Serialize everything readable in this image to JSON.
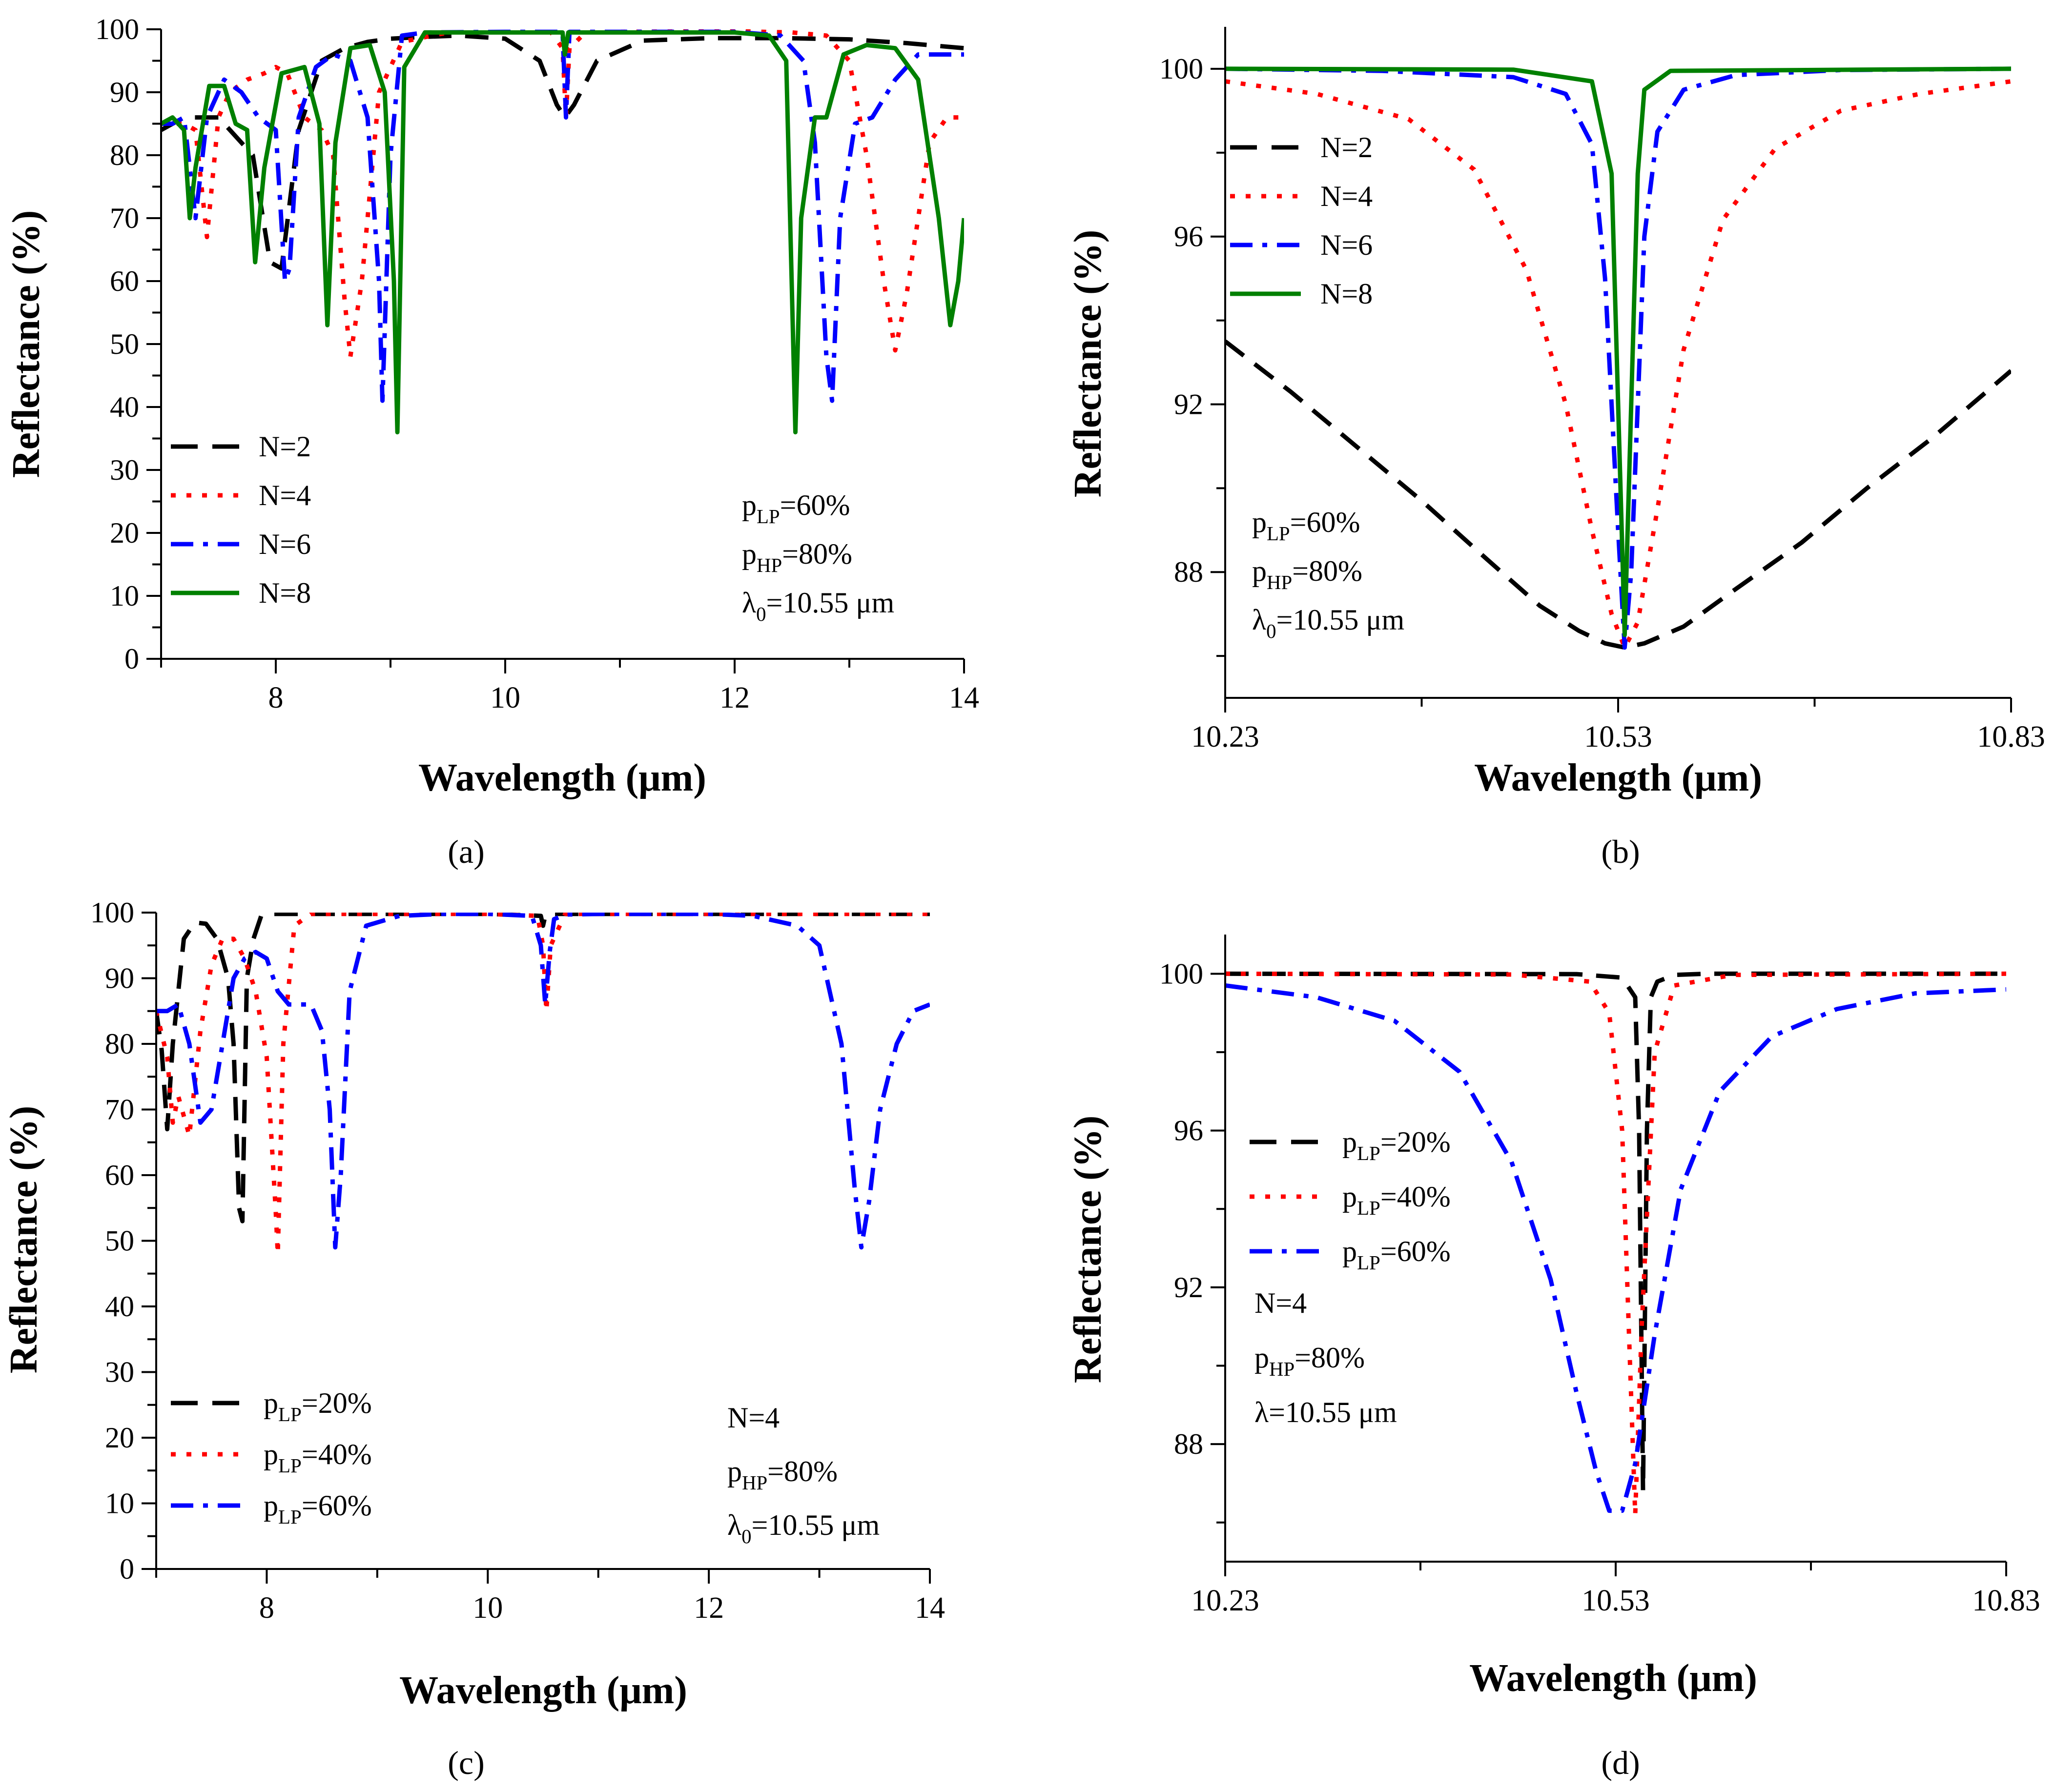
{
  "chart_data": [
    {
      "id": "a",
      "type": "line",
      "caption": "(a)",
      "xlabel": "Wavelength (μm)",
      "ylabel": "Reflectance (%)",
      "xlim": [
        7,
        14
      ],
      "ylim": [
        0,
        100
      ],
      "xticks": [
        8,
        10,
        12,
        14
      ],
      "yticks": [
        0,
        10,
        20,
        30,
        40,
        50,
        60,
        70,
        80,
        90,
        100
      ],
      "legend": "bottom-left",
      "annotations": [
        {
          "base": "p",
          "sub": "LP",
          "rest": "=60%"
        },
        {
          "base": "p",
          "sub": "HP",
          "rest": "=80%"
        },
        {
          "base": "λ",
          "sub": "0",
          "rest": "=10.55 μm"
        }
      ],
      "series": [
        {
          "name": "N=2",
          "label_prefix": "",
          "label_sub": "",
          "label_rest": "N=2",
          "color": "#000000",
          "dash": "dash",
          "x": [
            7.0,
            7.2,
            7.5,
            7.8,
            7.95,
            8.05,
            8.2,
            8.4,
            8.6,
            8.8,
            9.0,
            9.3,
            9.6,
            10.0,
            10.3,
            10.45,
            10.52,
            10.6,
            10.8,
            11.2,
            11.8,
            12.4,
            13.0,
            13.5,
            14.0
          ],
          "y": [
            84,
            86,
            86,
            80,
            63,
            62,
            84,
            95,
            97,
            98,
            98.5,
            98.8,
            99,
            98.5,
            95,
            88,
            86,
            88,
            95,
            98.2,
            98.6,
            98.6,
            98.4,
            97.8,
            97
          ]
        },
        {
          "name": "N=4",
          "label_prefix": "",
          "label_sub": "",
          "label_rest": "N=4",
          "color": "#ff0000",
          "dash": "dot",
          "x": [
            7.0,
            7.2,
            7.3,
            7.4,
            7.5,
            7.6,
            7.75,
            7.9,
            8.0,
            8.1,
            8.25,
            8.4,
            8.5,
            8.6,
            8.65,
            8.75,
            8.9,
            9.1,
            9.5,
            10.0,
            10.4,
            10.5,
            10.53,
            10.56,
            10.7,
            11.0,
            12.0,
            12.5,
            12.8,
            13.0,
            13.15,
            13.3,
            13.4,
            13.5,
            13.7,
            13.85,
            14.0
          ],
          "y": [
            85,
            85,
            84,
            67,
            86,
            90,
            92,
            93,
            94,
            93,
            86,
            84,
            80,
            57,
            48,
            60,
            90,
            98,
            99.5,
            99.5,
            99.5,
            97,
            86,
            97,
            99.5,
            99.6,
            99.7,
            99.5,
            99,
            95,
            80,
            60,
            49,
            58,
            82,
            86,
            86
          ]
        },
        {
          "name": "N=6",
          "label_prefix": "",
          "label_sub": "",
          "label_rest": "N=6",
          "color": "#0000ff",
          "dash": "dashdot",
          "x": [
            7.0,
            7.1,
            7.2,
            7.3,
            7.4,
            7.55,
            7.7,
            7.85,
            8.0,
            8.08,
            8.12,
            8.2,
            8.35,
            8.5,
            8.65,
            8.8,
            8.9,
            8.93,
            9.0,
            9.1,
            9.3,
            10.0,
            10.5,
            10.53,
            10.56,
            11.0,
            12.0,
            12.4,
            12.6,
            12.7,
            12.8,
            12.85,
            12.92,
            13.05,
            13.2,
            13.4,
            13.6,
            14.0
          ],
          "y": [
            85,
            85,
            86,
            70,
            86,
            92,
            90,
            86,
            84,
            60,
            62,
            86,
            94,
            96,
            95,
            86,
            60,
            41,
            80,
            99,
            99.5,
            99.6,
            99.6,
            86,
            99.6,
            99.6,
            99.6,
            99,
            95,
            82,
            48,
            41,
            70,
            85,
            86,
            92,
            96,
            96
          ]
        },
        {
          "name": "N=8",
          "label_prefix": "",
          "label_sub": "",
          "label_rest": "N=8",
          "color": "#008000",
          "dash": "solid",
          "x": [
            7.0,
            7.1,
            7.2,
            7.25,
            7.3,
            7.42,
            7.55,
            7.65,
            7.75,
            7.82,
            7.9,
            8.05,
            8.25,
            8.38,
            8.45,
            8.52,
            8.65,
            8.82,
            8.95,
            9.03,
            9.06,
            9.12,
            9.3,
            10.0,
            10.5,
            10.52,
            10.55,
            11.0,
            12.0,
            12.3,
            12.45,
            12.53,
            12.58,
            12.7,
            12.8,
            12.95,
            13.15,
            13.4,
            13.6,
            13.78,
            13.88,
            13.95,
            14.0
          ],
          "y": [
            85,
            86,
            84,
            70,
            78,
            91,
            91,
            85,
            84,
            63,
            78,
            93,
            94,
            85,
            53,
            82,
            97,
            97.5,
            90,
            60,
            36,
            94,
            99.5,
            99.5,
            99.5,
            96,
            99.5,
            99.5,
            99.5,
            99,
            95,
            36,
            70,
            86,
            86,
            96,
            97.5,
            97,
            92,
            70,
            53,
            60,
            70
          ]
        }
      ]
    },
    {
      "id": "b",
      "type": "line",
      "caption": "(b)",
      "xlabel": "Wavelength (μm)",
      "ylabel": "Reflectance (%)",
      "xlim": [
        10.23,
        10.83
      ],
      "ylim": [
        85,
        101
      ],
      "xticks": [
        10.23,
        10.53,
        10.83
      ],
      "xtick_labels": [
        "10.23",
        "10.53",
        "10.83"
      ],
      "yticks": [
        88,
        92,
        96,
        100
      ],
      "legend": "top-left",
      "annotations": [
        {
          "base": "p",
          "sub": "LP",
          "rest": "=60%"
        },
        {
          "base": "p",
          "sub": "HP",
          "rest": "=80%"
        },
        {
          "base": "λ",
          "sub": "0",
          "rest": "=10.55 μm"
        }
      ],
      "series": [
        {
          "name": "N=2",
          "label_prefix": "",
          "label_sub": "",
          "label_rest": "N=2",
          "color": "#000000",
          "dash": "dash",
          "x": [
            10.23,
            10.28,
            10.33,
            10.38,
            10.43,
            10.47,
            10.5,
            10.52,
            10.535,
            10.55,
            10.58,
            10.62,
            10.67,
            10.72,
            10.77,
            10.83
          ],
          "y": [
            93.5,
            92.3,
            91,
            89.7,
            88.3,
            87.2,
            86.6,
            86.3,
            86.2,
            86.3,
            86.7,
            87.6,
            88.7,
            90,
            91.2,
            92.8
          ]
        },
        {
          "name": "N=4",
          "label_prefix": "",
          "label_sub": "",
          "label_rest": "N=4",
          "color": "#ff0000",
          "dash": "dot",
          "x": [
            10.23,
            10.3,
            10.37,
            10.42,
            10.46,
            10.49,
            10.51,
            10.525,
            10.535,
            10.545,
            10.56,
            10.58,
            10.61,
            10.65,
            10.7,
            10.76,
            10.83
          ],
          "y": [
            99.7,
            99.4,
            98.8,
            97.6,
            95.2,
            92,
            89,
            87,
            86.2,
            86.8,
            89.5,
            93.3,
            96.4,
            98.1,
            99,
            99.4,
            99.7
          ]
        },
        {
          "name": "N=6",
          "label_prefix": "",
          "label_sub": "",
          "label_rest": "N=6",
          "color": "#0000ff",
          "dash": "dashdot",
          "x": [
            10.23,
            10.35,
            10.45,
            10.49,
            10.51,
            10.52,
            10.53,
            10.535,
            10.54,
            10.55,
            10.56,
            10.58,
            10.62,
            10.7,
            10.83
          ],
          "y": [
            100,
            99.95,
            99.8,
            99.4,
            98.2,
            95,
            89,
            86.2,
            88,
            96,
            98.5,
            99.5,
            99.85,
            99.97,
            100
          ]
        },
        {
          "name": "N=8",
          "label_prefix": "",
          "label_sub": "",
          "label_rest": "N=8",
          "color": "#008000",
          "dash": "solid",
          "x": [
            10.23,
            10.45,
            10.51,
            10.525,
            10.53,
            10.535,
            10.54,
            10.545,
            10.55,
            10.57,
            10.83
          ],
          "y": [
            100,
            99.98,
            99.7,
            97.5,
            92,
            86.5,
            92,
            97.5,
            99.5,
            99.95,
            100
          ]
        }
      ]
    },
    {
      "id": "c",
      "type": "line",
      "caption": "(c)",
      "xlabel": "Wavelength (μm)",
      "ylabel": "Reflectance (%)",
      "xlim": [
        7,
        14
      ],
      "ylim": [
        0,
        100
      ],
      "xticks": [
        8,
        10,
        12,
        14
      ],
      "yticks": [
        0,
        10,
        20,
        30,
        40,
        50,
        60,
        70,
        80,
        90,
        100
      ],
      "legend": "bottom-left",
      "annotations": [
        {
          "base": "N=4",
          "sub": "",
          "rest": ""
        },
        {
          "base": "p",
          "sub": "HP",
          "rest": "=80%"
        },
        {
          "base": "λ",
          "sub": "0",
          "rest": "=10.55 μm"
        }
      ],
      "series": [
        {
          "name": "pLP=20%",
          "label_prefix": "p",
          "label_sub": "LP",
          "label_rest": "=20%",
          "color": "#000000",
          "dash": "dash",
          "x": [
            7.0,
            7.05,
            7.1,
            7.15,
            7.25,
            7.35,
            7.45,
            7.55,
            7.65,
            7.7,
            7.75,
            7.78,
            7.82,
            7.88,
            7.95,
            8.05,
            8.2,
            8.5,
            9.0,
            10.0,
            10.48,
            10.5,
            10.52,
            10.6,
            11.0,
            12.0,
            13.0,
            14.0
          ],
          "y": [
            85,
            79,
            67,
            80,
            96,
            98.5,
            98.3,
            96,
            90,
            80,
            55,
            53,
            90,
            96,
            99.5,
            99.8,
            99.8,
            99.8,
            99.8,
            99.8,
            99.5,
            98,
            99.5,
            99.8,
            99.8,
            99.8,
            99.8,
            99.8
          ]
        },
        {
          "name": "pLP=40%",
          "label_prefix": "p",
          "label_sub": "LP",
          "label_rest": "=40%",
          "color": "#ff0000",
          "dash": "dot",
          "x": [
            7.0,
            7.1,
            7.15,
            7.2,
            7.3,
            7.4,
            7.5,
            7.6,
            7.7,
            7.8,
            7.9,
            8.0,
            8.08,
            8.1,
            8.15,
            8.25,
            8.4,
            9.0,
            10.0,
            10.45,
            10.5,
            10.53,
            10.57,
            10.7,
            11.0,
            12.0,
            13.0,
            14.0
          ],
          "y": [
            85,
            78,
            68,
            72,
            66,
            82,
            92,
            96,
            96,
            93,
            88,
            78,
            55,
            48,
            80,
            98,
            99.8,
            99.8,
            99.8,
            99.5,
            95,
            85,
            95,
            99.8,
            99.8,
            99.8,
            99.8,
            99.8
          ]
        },
        {
          "name": "pLP=60%",
          "label_prefix": "p",
          "label_sub": "LP",
          "label_rest": "=60%",
          "color": "#0000ff",
          "dash": "dashdot",
          "x": [
            7.0,
            7.1,
            7.2,
            7.3,
            7.4,
            7.5,
            7.6,
            7.7,
            7.8,
            7.9,
            8.0,
            8.1,
            8.2,
            8.3,
            8.4,
            8.5,
            8.57,
            8.62,
            8.67,
            8.75,
            8.9,
            9.2,
            9.6,
            10.0,
            10.4,
            10.48,
            10.52,
            10.56,
            10.6,
            10.7,
            11.0,
            12.0,
            12.4,
            12.8,
            13.0,
            13.2,
            13.32,
            13.38,
            13.45,
            13.55,
            13.7,
            13.85,
            14.0
          ],
          "y": [
            85,
            85,
            86,
            80,
            68,
            70,
            80,
            90,
            93,
            94,
            93,
            88,
            86,
            86,
            86,
            82,
            70,
            49,
            60,
            88,
            98,
            99.5,
            99.8,
            99.8,
            99.5,
            95,
            86,
            94,
            99,
            99.7,
            99.8,
            99.8,
            99.5,
            98,
            95,
            80,
            58,
            49,
            56,
            70,
            80,
            85,
            86
          ]
        }
      ]
    },
    {
      "id": "d",
      "type": "line",
      "caption": "(d)",
      "xlabel": "Wavelength (μm)",
      "ylabel": "Reflectance (%)",
      "xlim": [
        10.23,
        10.83
      ],
      "ylim": [
        85,
        101
      ],
      "xticks": [
        10.23,
        10.53,
        10.83
      ],
      "xtick_labels": [
        "10.23",
        "10.53",
        "10.83"
      ],
      "yticks": [
        88,
        92,
        96,
        100
      ],
      "legend": "middle-left",
      "annotations": [
        {
          "base": "N=4",
          "sub": "",
          "rest": ""
        },
        {
          "base": "p",
          "sub": "HP",
          "rest": "=80%"
        },
        {
          "base": "λ=10.55 μm",
          "sub": "",
          "rest": ""
        }
      ],
      "series": [
        {
          "name": "pLP=20%",
          "label_prefix": "p",
          "label_sub": "LP",
          "label_rest": "=20%",
          "color": "#000000",
          "dash": "dash",
          "x": [
            10.23,
            10.5,
            10.535,
            10.545,
            10.548,
            10.551,
            10.554,
            10.557,
            10.562,
            10.575,
            10.6,
            10.83
          ],
          "y": [
            100,
            99.99,
            99.9,
            99.4,
            96,
            86.8,
            96,
            99.4,
            99.8,
            99.97,
            100,
            100
          ]
        },
        {
          "name": "pLP=40%",
          "label_prefix": "p",
          "label_sub": "LP",
          "label_rest": "=40%",
          "color": "#ff0000",
          "dash": "dot",
          "x": [
            10.23,
            10.45,
            10.51,
            10.525,
            10.535,
            10.54,
            10.545,
            10.55,
            10.56,
            10.575,
            10.62,
            10.83
          ],
          "y": [
            100,
            99.98,
            99.8,
            99,
            96,
            91,
            86.2,
            91,
            98,
            99.7,
            99.97,
            100
          ]
        },
        {
          "name": "pLP=60%",
          "label_prefix": "p",
          "label_sub": "LP",
          "label_rest": "=60%",
          "color": "#0000ff",
          "dash": "dashdot",
          "x": [
            10.23,
            10.3,
            10.36,
            10.41,
            10.45,
            10.48,
            10.5,
            10.515,
            10.525,
            10.535,
            10.545,
            10.56,
            10.58,
            10.61,
            10.65,
            10.7,
            10.76,
            10.83
          ],
          "y": [
            99.7,
            99.4,
            98.8,
            97.5,
            95.2,
            92.2,
            89.3,
            87.3,
            86.3,
            86.3,
            87.5,
            90.8,
            94.5,
            97,
            98.4,
            99.1,
            99.5,
            99.6
          ]
        }
      ]
    }
  ]
}
